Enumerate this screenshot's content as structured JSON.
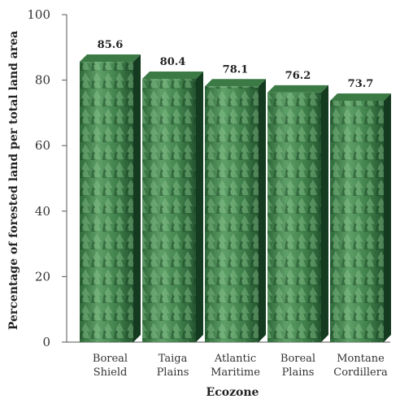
{
  "chart_data": {
    "type": "bar",
    "title": "",
    "xlabel": "Ecozone",
    "ylabel": "Percentage of forested land per total land area",
    "ylim": [
      0,
      100
    ],
    "yticks": [
      0,
      20,
      40,
      60,
      80,
      100
    ],
    "categories": [
      [
        "Boreal",
        "Shield"
      ],
      [
        "Taiga",
        "Plains"
      ],
      [
        "Atlantic",
        "Maritime"
      ],
      [
        "Boreal",
        "Plains"
      ],
      [
        "Montane",
        "Cordillera"
      ]
    ],
    "values": [
      85.6,
      80.4,
      78.1,
      76.2,
      73.7
    ],
    "value_labels": [
      "85.6",
      "80.4",
      "78.1",
      "76.2",
      "73.7"
    ],
    "grid": false,
    "bar_fill": "forest-photo-texture",
    "colors": {
      "bar_face": "#4f8f5a",
      "bar_dark": "#1f4a2a",
      "bar_side": "#143a20",
      "bar_top": "#3b7a45",
      "axis": "#555555"
    }
  }
}
